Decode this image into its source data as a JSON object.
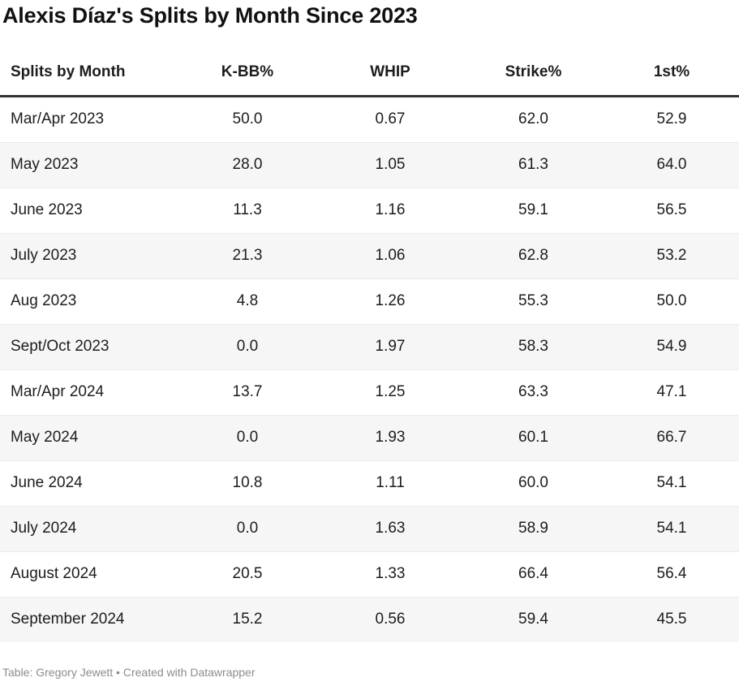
{
  "header": {
    "title": "Alexis Díaz's Splits by Month Since 2023"
  },
  "table": {
    "columns": [
      "Splits by Month",
      "K-BB%",
      "WHIP",
      "Strike%",
      "1st%"
    ],
    "rows": [
      [
        "Mar/Apr 2023",
        "50.0",
        "0.67",
        "62.0",
        "52.9"
      ],
      [
        "May 2023",
        "28.0",
        "1.05",
        "61.3",
        "64.0"
      ],
      [
        "June 2023",
        "11.3",
        "1.16",
        "59.1",
        "56.5"
      ],
      [
        "July 2023",
        "21.3",
        "1.06",
        "62.8",
        "53.2"
      ],
      [
        "Aug 2023",
        "4.8",
        "1.26",
        "55.3",
        "50.0"
      ],
      [
        "Sept/Oct 2023",
        "0.0",
        "1.97",
        "58.3",
        "54.9"
      ],
      [
        "Mar/Apr 2024",
        "13.7",
        "1.25",
        "63.3",
        "47.1"
      ],
      [
        "May 2024",
        "0.0",
        "1.93",
        "60.1",
        "66.7"
      ],
      [
        "June 2024",
        "10.8",
        "1.11",
        "60.0",
        "54.1"
      ],
      [
        "July 2024",
        "0.0",
        "1.63",
        "58.9",
        "54.1"
      ],
      [
        "August 2024",
        "20.5",
        "1.33",
        "66.4",
        "56.4"
      ],
      [
        "September 2024",
        "15.2",
        "0.56",
        "59.4",
        "45.5"
      ]
    ]
  },
  "footer": {
    "credit": "Table: Gregory Jewett • Created with Datawrapper"
  },
  "colors": {
    "text": "#1d1d1d",
    "title": "#111111",
    "row_stripe": "#f6f6f6",
    "header_rule": "#333333",
    "row_border": "#ebebeb",
    "footer_text": "#8c8c8c",
    "background": "#ffffff"
  },
  "chart_data": {
    "type": "table",
    "title": "Alexis Díaz's Splits by Month Since 2023",
    "columns": [
      "Splits by Month",
      "K-BB%",
      "WHIP",
      "Strike%",
      "1st%"
    ],
    "categories": [
      "Mar/Apr 2023",
      "May 2023",
      "June 2023",
      "July 2023",
      "Aug 2023",
      "Sept/Oct 2023",
      "Mar/Apr 2024",
      "May 2024",
      "June 2024",
      "July 2024",
      "August 2024",
      "September 2024"
    ],
    "series": [
      {
        "name": "K-BB%",
        "values": [
          50.0,
          28.0,
          11.3,
          21.3,
          4.8,
          0.0,
          13.7,
          0.0,
          10.8,
          0.0,
          20.5,
          15.2
        ]
      },
      {
        "name": "WHIP",
        "values": [
          0.67,
          1.05,
          1.16,
          1.06,
          1.26,
          1.97,
          1.25,
          1.93,
          1.11,
          1.63,
          1.33,
          0.56
        ]
      },
      {
        "name": "Strike%",
        "values": [
          62.0,
          61.3,
          59.1,
          62.8,
          55.3,
          58.3,
          63.3,
          60.1,
          60.0,
          58.9,
          66.4,
          59.4
        ]
      },
      {
        "name": "1st%",
        "values": [
          52.9,
          64.0,
          56.5,
          53.2,
          50.0,
          54.9,
          47.1,
          66.7,
          54.1,
          54.1,
          56.4,
          45.5
        ]
      }
    ],
    "layout_hints": {
      "striped_rows": true,
      "numeric_alignment": "center",
      "label_alignment": "left"
    },
    "note": "Table: Gregory Jewett • Created with Datawrapper"
  }
}
